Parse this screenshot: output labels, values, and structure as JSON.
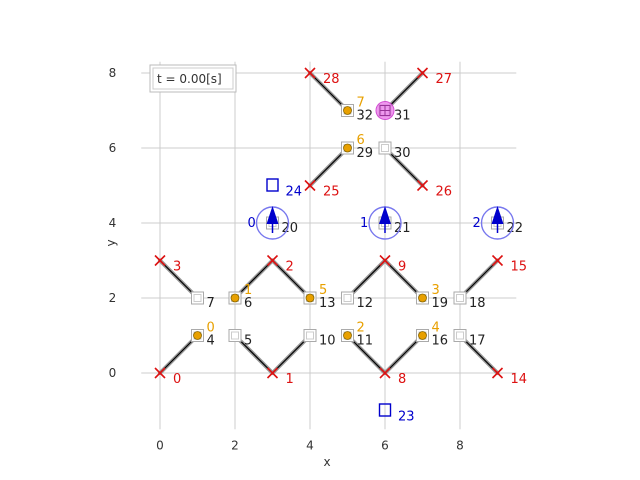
{
  "plot": {
    "time_label": "t = 0.00[s]",
    "xlabel": "x",
    "ylabel": "y",
    "xlim": [
      -0.5,
      9.5
    ],
    "ylim": [
      -1.5,
      8.3
    ],
    "xticks": [
      0,
      2,
      4,
      6,
      8
    ],
    "yticks": [
      0,
      2,
      4,
      6,
      8
    ],
    "grid": true
  },
  "colors": {
    "anchor": "#dd1111",
    "anchor_label": "#dd1111",
    "node_label": "#222222",
    "mass": "#e8a000",
    "mass_label": "#e8a000",
    "rocket": "#0000cc",
    "rocket_ring": "#7777ee",
    "marker": "#0000cc",
    "target": "#cc33cc",
    "grid": "#cccccc",
    "link": "#000000"
  },
  "anchors": [
    {
      "label": "0",
      "x": 0,
      "y": 0
    },
    {
      "label": "1",
      "x": 3,
      "y": 0
    },
    {
      "label": "2",
      "x": 3,
      "y": 3
    },
    {
      "label": "3",
      "x": 0,
      "y": 3
    },
    {
      "label": "8",
      "x": 6,
      "y": 0
    },
    {
      "label": "9",
      "x": 6,
      "y": 3
    },
    {
      "label": "14",
      "x": 9,
      "y": 0
    },
    {
      "label": "15",
      "x": 9,
      "y": 3
    },
    {
      "label": "25",
      "x": 4,
      "y": 5
    },
    {
      "label": "26",
      "x": 7,
      "y": 5
    },
    {
      "label": "27",
      "x": 7,
      "y": 8
    },
    {
      "label": "28",
      "x": 4,
      "y": 8
    }
  ],
  "nodes": [
    {
      "label": "4",
      "x": 1,
      "y": 1
    },
    {
      "label": "5",
      "x": 2,
      "y": 1
    },
    {
      "label": "6",
      "x": 2,
      "y": 2
    },
    {
      "label": "7",
      "x": 1,
      "y": 2
    },
    {
      "label": "10",
      "x": 4,
      "y": 1
    },
    {
      "label": "11",
      "x": 5,
      "y": 1
    },
    {
      "label": "12",
      "x": 5,
      "y": 2
    },
    {
      "label": "13",
      "x": 4,
      "y": 2
    },
    {
      "label": "16",
      "x": 7,
      "y": 1
    },
    {
      "label": "17",
      "x": 8,
      "y": 1
    },
    {
      "label": "18",
      "x": 8,
      "y": 2
    },
    {
      "label": "19",
      "x": 7,
      "y": 2
    },
    {
      "label": "20",
      "x": 3,
      "y": 4
    },
    {
      "label": "21",
      "x": 6,
      "y": 4
    },
    {
      "label": "22",
      "x": 9,
      "y": 4
    },
    {
      "label": "29",
      "x": 5,
      "y": 6
    },
    {
      "label": "30",
      "x": 6,
      "y": 6
    },
    {
      "label": "31",
      "x": 6,
      "y": 7
    },
    {
      "label": "32",
      "x": 5,
      "y": 7
    }
  ],
  "masses": [
    {
      "label": "0",
      "x": 1,
      "y": 1
    },
    {
      "label": "1",
      "x": 2,
      "y": 2
    },
    {
      "label": "2",
      "x": 5,
      "y": 1
    },
    {
      "label": "3",
      "x": 7,
      "y": 2
    },
    {
      "label": "4",
      "x": 7,
      "y": 1
    },
    {
      "label": "5",
      "x": 4,
      "y": 2
    },
    {
      "label": "6",
      "x": 5,
      "y": 6
    },
    {
      "label": "7",
      "x": 5,
      "y": 7
    }
  ],
  "links": [
    [
      [
        0,
        0
      ],
      [
        1,
        1
      ]
    ],
    [
      [
        2,
        1
      ],
      [
        3,
        0
      ]
    ],
    [
      [
        3,
        0
      ],
      [
        4,
        1
      ]
    ],
    [
      [
        5,
        1
      ],
      [
        6,
        0
      ]
    ],
    [
      [
        6,
        0
      ],
      [
        7,
        1
      ]
    ],
    [
      [
        8,
        1
      ],
      [
        9,
        0
      ]
    ],
    [
      [
        0,
        3
      ],
      [
        1,
        2
      ]
    ],
    [
      [
        2,
        2
      ],
      [
        3,
        3
      ]
    ],
    [
      [
        3,
        3
      ],
      [
        4,
        2
      ]
    ],
    [
      [
        5,
        2
      ],
      [
        6,
        3
      ]
    ],
    [
      [
        6,
        3
      ],
      [
        7,
        2
      ]
    ],
    [
      [
        8,
        2
      ],
      [
        9,
        3
      ]
    ],
    [
      [
        4,
        5
      ],
      [
        5,
        6
      ]
    ],
    [
      [
        6,
        6
      ],
      [
        7,
        5
      ]
    ],
    [
      [
        4,
        8
      ],
      [
        5,
        7
      ]
    ],
    [
      [
        6,
        7
      ],
      [
        7,
        8
      ]
    ]
  ],
  "rockets": [
    {
      "label": "0",
      "x": 3,
      "y": 4
    },
    {
      "label": "1",
      "x": 6,
      "y": 4
    },
    {
      "label": "2",
      "x": 9,
      "y": 4
    }
  ],
  "markers": [
    {
      "label": "24",
      "x": 3,
      "y": 5
    },
    {
      "label": "23",
      "x": 6,
      "y": -1
    }
  ],
  "target": {
    "x": 6,
    "y": 7
  }
}
